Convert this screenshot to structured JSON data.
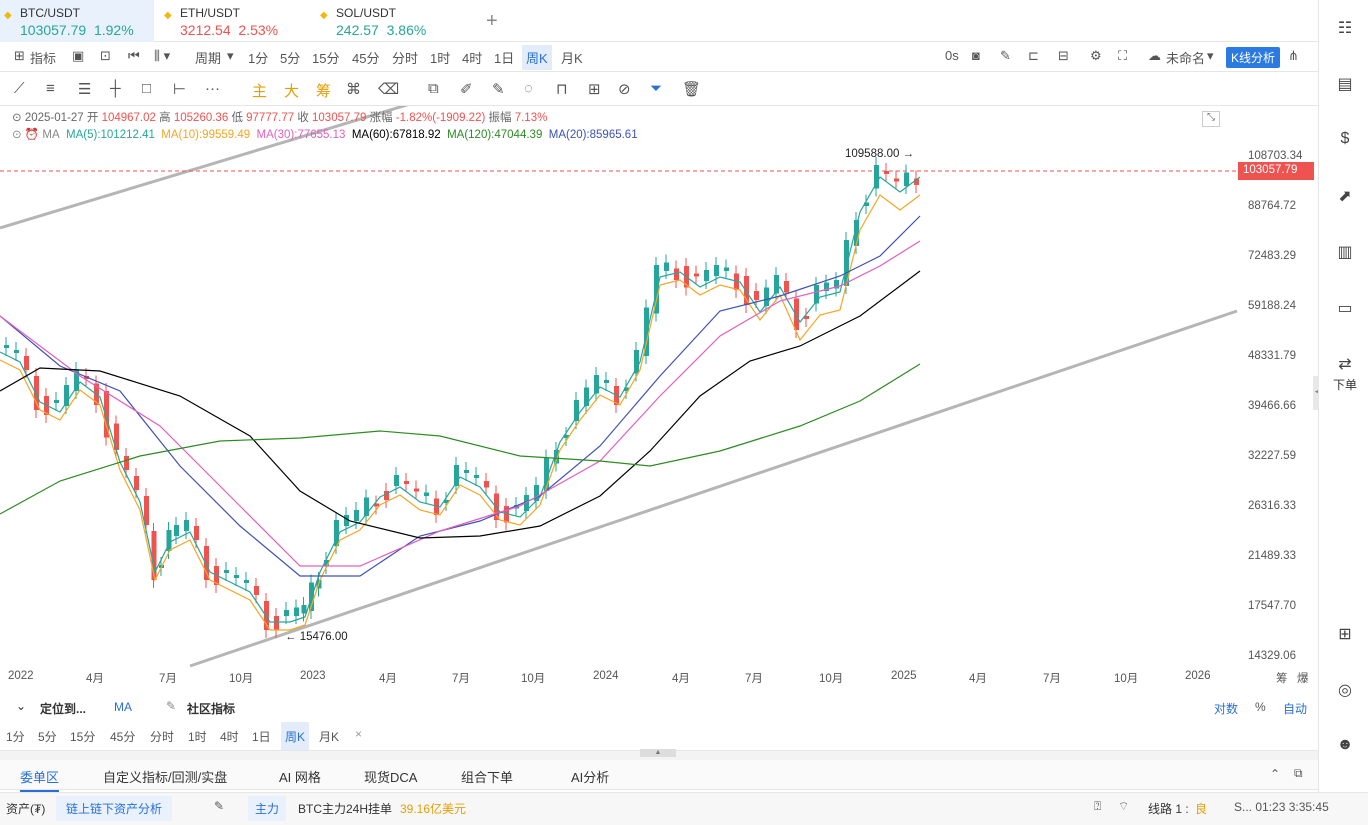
{
  "tabs": [
    {
      "pair": "BTC/USDT",
      "price": "103057.79",
      "change": "1.92%",
      "dir": "up"
    },
    {
      "pair": "ETH/USDT",
      "price": "3212.54",
      "change": "2.53%",
      "dir": "down"
    },
    {
      "pair": "SOL/USDT",
      "price": "242.57",
      "change": "3.86%",
      "dir": "up"
    }
  ],
  "add_tab": "+",
  "toolbar": {
    "indicator": "指标",
    "period": "周期",
    "intervals": [
      "1分",
      "5分",
      "15分",
      "45分",
      "分时",
      "1时",
      "4时",
      "1日",
      "周K",
      "月K"
    ],
    "selected_interval": "周K",
    "countdown": "0s",
    "layout_name": "未命名",
    "kline_analysis": "K线分析"
  },
  "draw_tools": {
    "zhu": "主",
    "da": "大",
    "chou": "筹"
  },
  "ohlc_info": {
    "date": "2025-01-27",
    "open_label": "开",
    "open": "104967.02",
    "high_label": "高",
    "high": "105260.36",
    "low_label": "低",
    "low": "97777.77",
    "close_label": "收",
    "close": "103057.79",
    "change_label": "涨幅",
    "change": "-1.82%(-1909.22)",
    "amp_label": "振幅",
    "amp": "7.13%"
  },
  "ma_info": {
    "label": "MA",
    "ma5": "MA(5):101212.41",
    "ma10": "MA(10):99559.49",
    "ma30": "MA(30):77655.13",
    "ma60": "MA(60):67818.92",
    "ma120": "MA(120):47044.39",
    "ma20": "MA(20):85965.61"
  },
  "colors": {
    "up": "#26a69a",
    "down": "#ef5350",
    "ma5": "#26a69a",
    "ma10": "#f5a623",
    "ma30": "#e35fbf",
    "ma60": "#000000",
    "ma120": "#2e8b22",
    "ma20": "#3f51b5",
    "accent": "#2a7ae2"
  },
  "price_axis": [
    "108703.34",
    "88764.72",
    "72483.29",
    "59188.24",
    "48331.79",
    "39466.66",
    "32227.59",
    "26316.33",
    "21489.33",
    "17547.70",
    "14329.06"
  ],
  "current_price": "103057.79",
  "high_annotation": "109588.00 →",
  "low_annotation": "← 15476.00",
  "time_axis": [
    "2022",
    "4月",
    "7月",
    "10月",
    "2023",
    "4月",
    "7月",
    "10月",
    "2024",
    "4月",
    "7月",
    "10月",
    "2025",
    "4月",
    "7月",
    "10月",
    "2026"
  ],
  "axis_corner": {
    "a": "筹",
    "b": "爆"
  },
  "lower_bar": {
    "locate": "定位到...",
    "ma": "MA",
    "community": "社区指标",
    "count": "对数",
    "percent": "%",
    "auto": "自动",
    "intervals": [
      "1分",
      "5分",
      "15分",
      "45分",
      "分时",
      "1时",
      "4时",
      "1日",
      "周K",
      "月K"
    ],
    "close": "×"
  },
  "bottom_tabs": [
    "委单区",
    "自定义指标/回测/实盘",
    "AI 网格",
    "现货DCA",
    "组合下单",
    "AI分析"
  ],
  "status": {
    "assets": "资产(₮)",
    "onchain": "链上链下资产分析",
    "main": "主力",
    "main_text": "BTC主力24H挂单",
    "main_value": "39.16亿美元",
    "line": "线路 1 :",
    "line_quality": "良",
    "watermark": "S... 01:23 3:35:45"
  },
  "right_side": {
    "order_label": "下单"
  }
}
